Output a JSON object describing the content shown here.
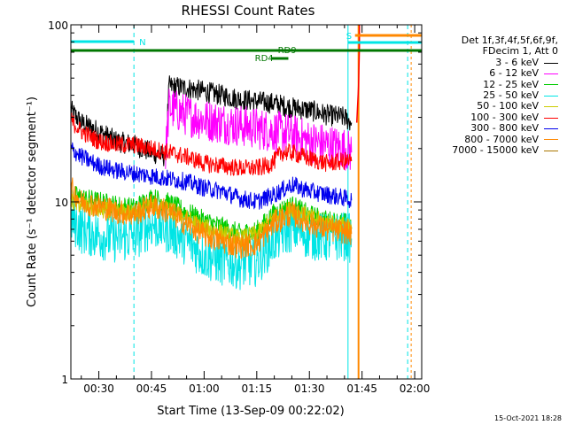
{
  "chart_data": {
    "type": "line",
    "title": "RHESSI Count Rates",
    "xlabel": "Start Time (13-Sep-09 00:22:02)",
    "ylabel": "Count Rate (s⁻¹ detector segment⁻¹)",
    "y_scale": "log",
    "ylim": [
      1,
      100
    ],
    "xlim": [
      "00:22:02",
      "02:02:00"
    ],
    "x_ticks": [
      "00:30",
      "00:45",
      "01:00",
      "01:15",
      "01:30",
      "01:45",
      "02:00"
    ],
    "y_ticks": [
      "1",
      "10",
      "100"
    ],
    "grid": false,
    "legend_position": "right",
    "legend_header": [
      "Det 1f,3f,4f,5f,6f,9f,",
      "FDecim 1, Att 0"
    ],
    "series": [
      {
        "name": "3 - 6 keV",
        "color": "#000000",
        "x": [
          "00:22",
          "00:25",
          "00:30",
          "00:35",
          "00:40",
          "00:45",
          "00:49",
          "00:50",
          "00:55",
          "01:00",
          "01:05",
          "01:10",
          "01:15",
          "01:20",
          "01:25",
          "01:30",
          "01:35",
          "01:40",
          "01:42"
        ],
        "y": [
          33,
          28,
          25,
          22,
          21,
          19,
          18,
          45,
          44,
          42,
          40,
          38,
          37,
          36,
          34,
          33,
          31,
          30,
          28
        ]
      },
      {
        "name": "6 - 12 keV",
        "color": "#ff00ff",
        "x": [
          "00:49",
          "00:50",
          "00:55",
          "01:00",
          "01:05",
          "01:10",
          "01:15",
          "01:20",
          "01:25",
          "01:30",
          "01:35",
          "01:40",
          "01:42"
        ],
        "y": [
          18,
          34,
          31,
          29,
          28,
          27,
          26,
          25,
          24,
          22,
          21,
          20,
          19
        ]
      },
      {
        "name": "12 - 25 keV",
        "color": "#00cc00",
        "x": [
          "00:22",
          "00:25",
          "00:30",
          "00:35",
          "00:40",
          "00:45",
          "00:50",
          "00:55",
          "01:00",
          "01:05",
          "01:10",
          "01:15",
          "01:20",
          "01:25",
          "01:30",
          "01:35",
          "01:40",
          "01:42"
        ],
        "y": [
          11,
          10.5,
          10,
          9.5,
          9.2,
          10.5,
          9.8,
          8.7,
          7.8,
          7.2,
          6.6,
          6.8,
          8.6,
          9.5,
          8.4,
          7.8,
          7.6,
          7.2
        ]
      },
      {
        "name": "25 - 50 keV",
        "color": "#00e5e5",
        "x": [
          "00:22",
          "00:25",
          "00:30",
          "00:35",
          "00:40",
          "00:45",
          "00:50",
          "00:55",
          "01:00",
          "01:05",
          "01:10",
          "01:15",
          "01:20",
          "01:25",
          "01:30",
          "01:35",
          "01:40",
          "01:42"
        ],
        "y": [
          8,
          7,
          6.5,
          6.2,
          6.4,
          7.5,
          7,
          6,
          5,
          4.6,
          4.4,
          4.6,
          6.2,
          7.2,
          6.5,
          6.2,
          6.4,
          6.2
        ]
      },
      {
        "name": "50 - 100 keV",
        "color": "#cccc00",
        "x": [
          "00:22",
          "00:30",
          "00:40",
          "00:45",
          "00:50",
          "01:00",
          "01:10",
          "01:15",
          "01:20",
          "01:25",
          "01:30",
          "01:35",
          "01:40",
          "01:42"
        ],
        "y": [
          10,
          9,
          8.6,
          9.6,
          9,
          7.2,
          6.2,
          6.6,
          8.2,
          9.2,
          8.2,
          7.6,
          7.4,
          7
        ]
      },
      {
        "name": "100 - 300 keV",
        "color": "#ff0000",
        "x": [
          "00:22",
          "00:25",
          "00:30",
          "00:35",
          "00:40",
          "00:45",
          "00:50",
          "00:55",
          "01:00",
          "01:05",
          "01:10",
          "01:15",
          "01:18",
          "01:20",
          "01:22",
          "01:25",
          "01:30",
          "01:35",
          "01:40",
          "01:42"
        ],
        "y": [
          29,
          25,
          22,
          21,
          21,
          20,
          19,
          18,
          16.5,
          16,
          15.5,
          15.5,
          16,
          17,
          19,
          19,
          17.5,
          16.5,
          17,
          17
        ]
      },
      {
        "name": "300 - 800 keV",
        "color": "#0000ee",
        "x": [
          "00:22",
          "00:25",
          "00:30",
          "00:35",
          "00:40",
          "00:45",
          "00:50",
          "00:55",
          "01:00",
          "01:05",
          "01:10",
          "01:15",
          "01:20",
          "01:25",
          "01:30",
          "01:35",
          "01:40",
          "01:42"
        ],
        "y": [
          20,
          18,
          16,
          15,
          14.5,
          14,
          13.5,
          13,
          12,
          11.5,
          10.5,
          10,
          11,
          12.5,
          11.5,
          11,
          10.5,
          10.2
        ]
      },
      {
        "name": "800 - 7000 keV",
        "color": "#ff8800",
        "x": [
          "00:22",
          "00:25",
          "00:30",
          "00:35",
          "00:40",
          "00:45",
          "00:50",
          "00:55",
          "01:00",
          "01:05",
          "01:10",
          "01:15",
          "01:20",
          "01:25",
          "01:30",
          "01:35",
          "01:40",
          "01:42"
        ],
        "y": [
          12,
          10,
          9.5,
          8.8,
          8.5,
          9.5,
          8.8,
          7.5,
          6.5,
          6,
          5.6,
          5.8,
          7.6,
          8.6,
          7.6,
          7,
          6.8,
          6.6
        ]
      },
      {
        "name": "7000 - 15000 keV",
        "color": "#aa7700",
        "x": [],
        "y": []
      }
    ],
    "annotations": [
      {
        "text": "N",
        "color": "#00e5e5"
      },
      {
        "text": "S",
        "color": "#00e5e5"
      },
      {
        "text": "RD4",
        "color": "#007700"
      },
      {
        "text": "RD9",
        "color": "#007700"
      }
    ]
  },
  "footer": {
    "timestamp": "15-Oct-2021 18:28"
  },
  "colors": {
    "axes": "#000000",
    "background": "#ffffff"
  }
}
